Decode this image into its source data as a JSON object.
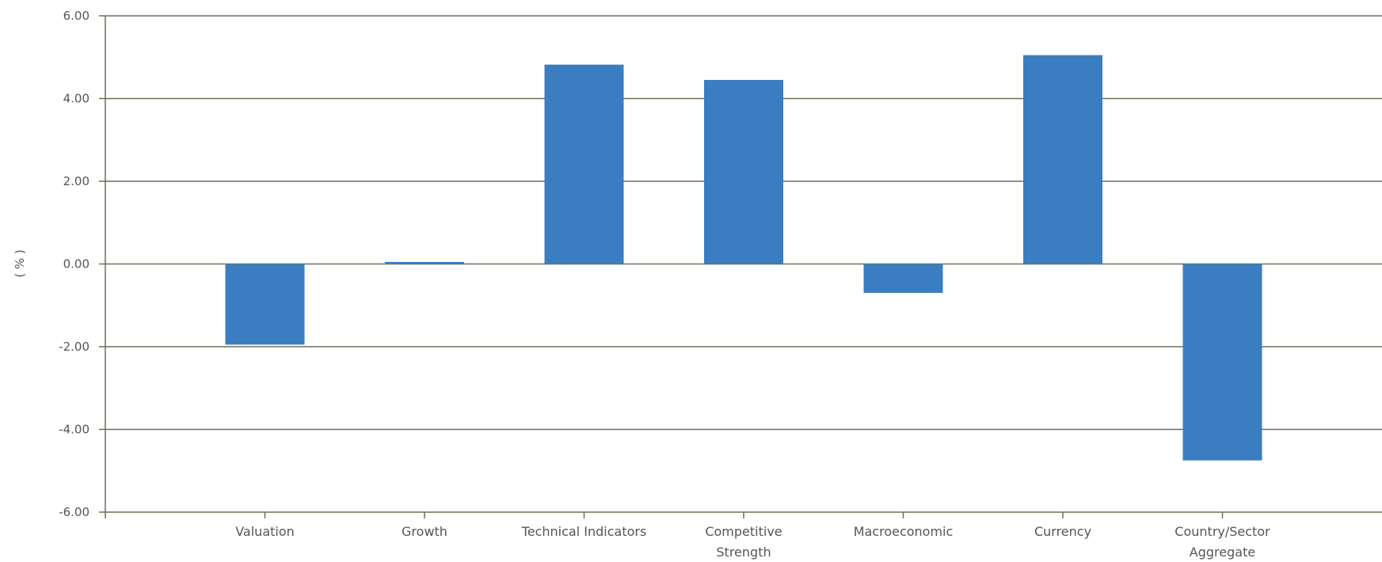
{
  "chart_data": {
    "type": "bar",
    "title": "",
    "xlabel": "",
    "ylabel": "( % )",
    "ylim": [
      -6,
      6
    ],
    "yticks": [
      6,
      4,
      2,
      0,
      -2,
      -4,
      -6
    ],
    "ytick_labels": [
      "6.00",
      "4.00",
      "2.00",
      "0.00",
      "-2.00",
      "-4.00",
      "-6.00"
    ],
    "categories": [
      [
        "Valuation"
      ],
      [
        "Growth"
      ],
      [
        "Technical Indicators"
      ],
      [
        "Competitive",
        "Strength"
      ],
      [
        "Macroeconomic"
      ],
      [
        "Currency"
      ],
      [
        "Country/Sector",
        "Aggregate"
      ]
    ],
    "values": [
      -1.95,
      0.05,
      4.82,
      4.45,
      -0.7,
      5.05,
      -4.75
    ],
    "grid": true,
    "legend": "none",
    "bar_color": "#3A7DC1",
    "grid_color": "#6E6E58"
  }
}
